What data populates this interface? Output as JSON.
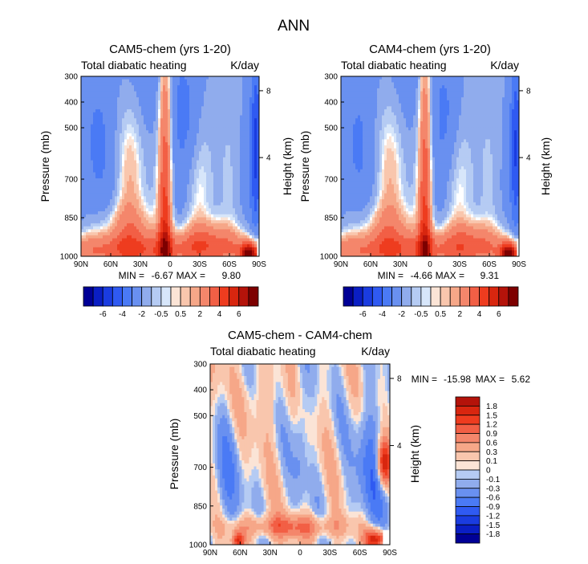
{
  "figure": {
    "title": "ANN"
  },
  "colors": {
    "neg": [
      "#000096",
      "#0a1ec4",
      "#1a3ce0",
      "#2f5af2",
      "#4a7af5",
      "#6990f0",
      "#90aced",
      "#b5cbf3",
      "#d7e6fa"
    ],
    "neutral": "#ffffff",
    "pos": [
      "#fbe4d6",
      "#f9c6ad",
      "#f6a788",
      "#f4866b",
      "#f25f45",
      "#ee3c1f",
      "#d8260f",
      "#b4130a",
      "#7d0000"
    ]
  },
  "chart_data": [
    {
      "type": "contour",
      "title": "CAM5-chem (yrs 1-20)",
      "subtitle_left": "Total diabatic heating",
      "subtitle_right": "K/day",
      "ylabel": "Pressure (mb)",
      "ylabel_right": "Height (km)",
      "x_ticks": [
        "90N",
        "60N",
        "30N",
        "0",
        "30S",
        "60S",
        "90S"
      ],
      "x_range": [
        90,
        -90
      ],
      "y_ticks": [
        "300",
        "400",
        "500",
        "700",
        "850",
        "1000"
      ],
      "y_tick_values": [
        300,
        400,
        500,
        700,
        850,
        1000
      ],
      "y_right_ticks": [
        "8",
        "4"
      ],
      "y_right_tick_pressures": [
        356,
        616
      ],
      "y_range": [
        300,
        1000
      ],
      "min_label": "MIN =",
      "min_value": "-6.67",
      "max_label": "MAX =",
      "max_value": "9.80",
      "field_scale": 1.0,
      "colorbar": {
        "orientation": "horizontal",
        "levels": [
          "-6",
          "-4",
          "-2",
          "-0.5",
          "0.5",
          "2",
          "4",
          "6"
        ],
        "level_values": [
          -6,
          -4,
          -2,
          -0.5,
          0.5,
          2,
          4,
          6
        ],
        "boxes": 18
      }
    },
    {
      "type": "contour",
      "title": "CAM4-chem (yrs 1-20)",
      "subtitle_left": "Total diabatic heating",
      "subtitle_right": "K/day",
      "ylabel": "Pressure (mb)",
      "ylabel_right": "Height (km)",
      "x_ticks": [
        "90N",
        "60N",
        "30N",
        "0",
        "30S",
        "60S",
        "90S"
      ],
      "x_range": [
        90,
        -90
      ],
      "y_ticks": [
        "300",
        "400",
        "500",
        "700",
        "850",
        "1000"
      ],
      "y_tick_values": [
        300,
        400,
        500,
        700,
        850,
        1000
      ],
      "y_right_ticks": [
        "8",
        "4"
      ],
      "y_right_tick_pressures": [
        356,
        616
      ],
      "y_range": [
        300,
        1000
      ],
      "min_label": "MIN =",
      "min_value": "-4.66",
      "max_label": "MAX =",
      "max_value": "9.31",
      "field_scale": 0.95,
      "colorbar": {
        "orientation": "horizontal",
        "levels": [
          "-6",
          "-4",
          "-2",
          "-0.5",
          "0.5",
          "2",
          "4",
          "6"
        ],
        "level_values": [
          -6,
          -4,
          -2,
          -0.5,
          0.5,
          2,
          4,
          6
        ],
        "boxes": 18
      }
    },
    {
      "type": "contour",
      "title": "CAM5-chem - CAM4-chem",
      "subtitle_left": "Total diabatic heating",
      "subtitle_right": "K/day",
      "ylabel": "Pressure (mb)",
      "ylabel_right": "Height (km)",
      "x_ticks": [
        "90N",
        "60N",
        "30N",
        "0",
        "30S",
        "60S",
        "90S"
      ],
      "x_range": [
        90,
        -90
      ],
      "y_ticks": [
        "300",
        "400",
        "500",
        "700",
        "850",
        "1000"
      ],
      "y_tick_values": [
        300,
        400,
        500,
        700,
        850,
        1000
      ],
      "y_right_ticks": [
        "8",
        "4"
      ],
      "y_right_tick_pressures": [
        356,
        616
      ],
      "y_range": [
        300,
        1000
      ],
      "min_label": "MIN =",
      "min_value": "-15.98",
      "max_label": "MAX =",
      "max_value": "5.62",
      "colorbar": {
        "orientation": "vertical",
        "levels": [
          "1.8",
          "1.5",
          "1.2",
          "0.9",
          "0.6",
          "0.3",
          "0.1",
          "0",
          "-0.1",
          "-0.3",
          "-0.6",
          "-0.9",
          "-1.2",
          "-1.5",
          "-1.8"
        ],
        "level_values": [
          1.8,
          1.5,
          1.2,
          0.9,
          0.6,
          0.3,
          0.1,
          0,
          -0.1,
          -0.3,
          -0.6,
          -0.9,
          -1.2,
          -1.5,
          -1.8
        ],
        "boxes": 16
      }
    }
  ]
}
